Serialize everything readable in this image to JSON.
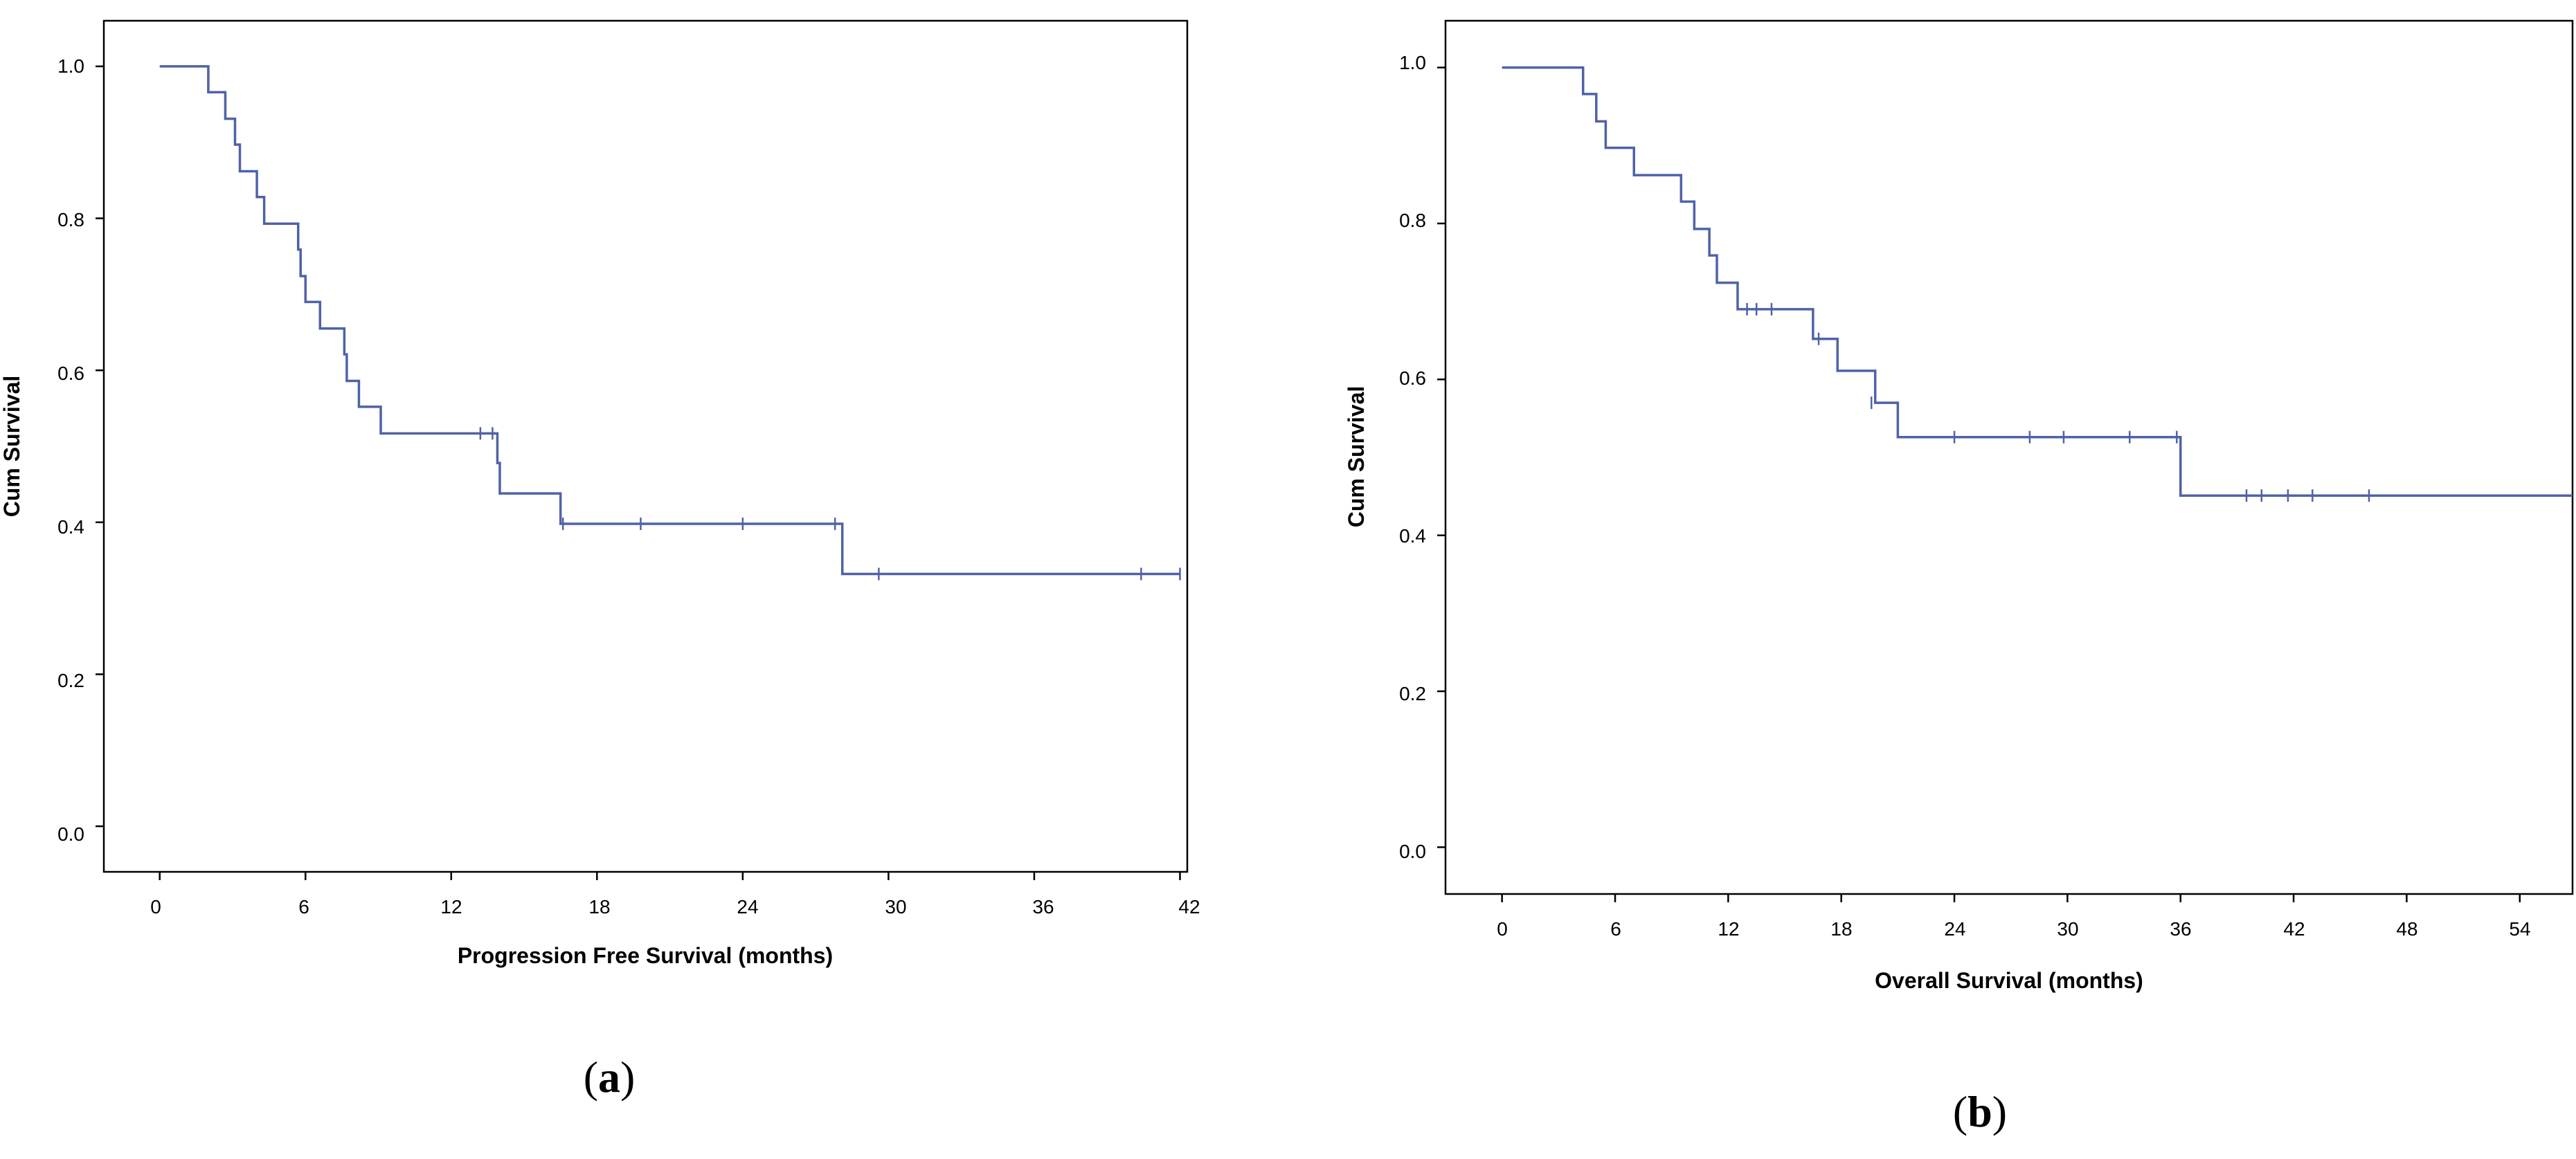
{
  "figure": {
    "panels": [
      {
        "label_open": "(",
        "label_letter": "a",
        "label_close": ")"
      },
      {
        "label_open": "(",
        "label_letter": "b",
        "label_close": ")"
      }
    ]
  },
  "colors": {
    "curve": "#4F62A8",
    "axis": "#000000",
    "frame": "#000000"
  },
  "chart_data": [
    {
      "type": "line",
      "subtype": "kaplan-meier",
      "title": "",
      "xlabel": "Progression Free Survival (months)",
      "ylabel": "Cum Survival",
      "xlim": [
        -2.3,
        42.3
      ],
      "ylim": [
        -0.06,
        1.06
      ],
      "xticks": [
        0,
        6,
        12,
        18,
        24,
        30,
        36,
        42
      ],
      "xtick_labels": [
        "0",
        "6",
        "12",
        "18",
        "24",
        "30",
        "36",
        "42"
      ],
      "yticks": [
        0.0,
        0.2,
        0.4,
        0.6,
        0.8,
        1.0
      ],
      "ytick_labels": [
        "0.0",
        "0.2",
        "0.4",
        "0.6",
        "0.8",
        "1.0"
      ],
      "grid": false,
      "series": [
        {
          "name": "Progression Free Survival",
          "steps": [
            [
              0,
              1.0
            ],
            [
              2.0,
              0.966
            ],
            [
              2.7,
              0.931
            ],
            [
              3.1,
              0.897
            ],
            [
              3.3,
              0.862
            ],
            [
              4.0,
              0.828
            ],
            [
              4.3,
              0.793
            ],
            [
              5.7,
              0.759
            ],
            [
              5.8,
              0.724
            ],
            [
              6.0,
              0.69
            ],
            [
              6.6,
              0.655
            ],
            [
              7.6,
              0.621
            ],
            [
              7.7,
              0.586
            ],
            [
              8.2,
              0.552
            ],
            [
              9.1,
              0.517
            ],
            [
              13.9,
              0.478
            ],
            [
              14.0,
              0.438
            ],
            [
              16.5,
              0.398
            ],
            [
              28.1,
              0.332
            ]
          ],
          "censored": [
            [
              13.2,
              0.517
            ],
            [
              13.7,
              0.517
            ],
            [
              16.6,
              0.398
            ],
            [
              19.8,
              0.398
            ],
            [
              24.0,
              0.398
            ],
            [
              27.8,
              0.398
            ],
            [
              29.6,
              0.332
            ],
            [
              40.4,
              0.332
            ],
            [
              42.0,
              0.332
            ]
          ],
          "x_end": 42.0
        }
      ]
    },
    {
      "type": "line",
      "subtype": "kaplan-meier",
      "title": "",
      "xlabel": "Overall Survival (months)",
      "ylabel": "Cum Survival",
      "xlim": [
        -3.0,
        56.8
      ],
      "ylim": [
        -0.06,
        1.06
      ],
      "xticks": [
        0,
        6,
        12,
        18,
        24,
        30,
        36,
        42,
        48,
        54
      ],
      "xtick_labels": [
        "0",
        "6",
        "12",
        "18",
        "24",
        "30",
        "36",
        "42",
        "48",
        "54"
      ],
      "yticks": [
        0.0,
        0.2,
        0.4,
        0.6,
        0.8,
        1.0
      ],
      "ytick_labels": [
        "0.0",
        "0.2",
        "0.4",
        "0.6",
        "0.8",
        "1.0"
      ],
      "grid": false,
      "series": [
        {
          "name": "Overall Survival",
          "steps": [
            [
              0,
              1.0
            ],
            [
              4.3,
              0.966
            ],
            [
              5.0,
              0.931
            ],
            [
              5.5,
              0.897
            ],
            [
              7.0,
              0.862
            ],
            [
              9.5,
              0.828
            ],
            [
              10.2,
              0.793
            ],
            [
              11.0,
              0.759
            ],
            [
              11.4,
              0.724
            ],
            [
              12.5,
              0.69
            ],
            [
              16.5,
              0.652
            ],
            [
              17.8,
              0.611
            ],
            [
              19.8,
              0.57
            ],
            [
              21.0,
              0.526
            ],
            [
              36.0,
              0.451
            ]
          ],
          "censored": [
            [
              13.0,
              0.69
            ],
            [
              13.5,
              0.69
            ],
            [
              14.3,
              0.69
            ],
            [
              16.8,
              0.652
            ],
            [
              19.6,
              0.57
            ],
            [
              24.0,
              0.526
            ],
            [
              28.0,
              0.526
            ],
            [
              29.8,
              0.526
            ],
            [
              33.3,
              0.526
            ],
            [
              35.8,
              0.526
            ],
            [
              39.5,
              0.451
            ],
            [
              40.3,
              0.451
            ],
            [
              41.7,
              0.451
            ],
            [
              43.0,
              0.451
            ],
            [
              46.0,
              0.451
            ]
          ],
          "x_end": 56.8
        }
      ]
    }
  ]
}
